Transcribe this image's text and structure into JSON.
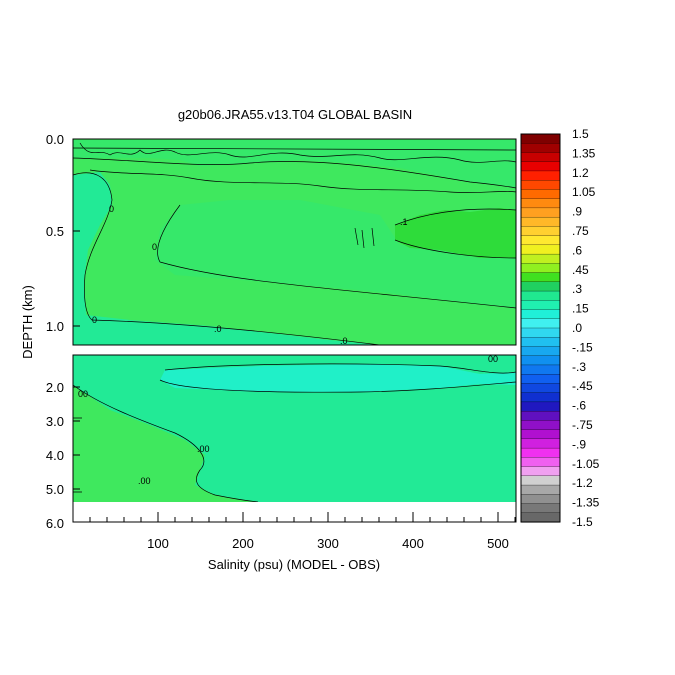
{
  "chart_data": {
    "type": "heatmap",
    "title": "g20b06.JRA55.v13.T04 GLOBAL BASIN",
    "xlabel": "Salinity (psu) (MODEL - OBS)",
    "ylabel": "DEPTH (km)",
    "xlim": [
      0,
      520
    ],
    "x_ticks": [
      "100",
      "200",
      "300",
      "400",
      "500"
    ],
    "upper_panel": {
      "ylim": [
        0.0,
        1.1
      ],
      "y_ticks": [
        "0.0",
        "0.5",
        "1.0"
      ]
    },
    "lower_panel": {
      "ylim": [
        1.1,
        6.0
      ],
      "y_ticks": [
        "2.0",
        "3.0",
        "4.0",
        "5.0",
        "6.0"
      ]
    },
    "colorbar": {
      "labels": [
        "1.5",
        "1.35",
        "1.2",
        "1.05",
        ".9",
        ".75",
        ".6",
        ".45",
        ".3",
        ".15",
        ".0",
        "-.15",
        "-.3",
        "-.45",
        "-.6",
        "-.75",
        "-.9",
        "-1.05",
        "-1.2",
        "-1.35",
        "-1.5"
      ],
      "colors": [
        "#7f0000",
        "#a00000",
        "#c80000",
        "#e80000",
        "#ff2000",
        "#ff4800",
        "#ff6a00",
        "#ff8a10",
        "#ffa020",
        "#ffb828",
        "#ffd030",
        "#ffe830",
        "#f0f020",
        "#c0f020",
        "#90f020",
        "#40e020",
        "#20d060",
        "#20e890",
        "#20f0b0",
        "#20f0d8",
        "#40f0f0",
        "#30d8f0",
        "#20c0f0",
        "#18a8f0",
        "#1090f0",
        "#1078f0",
        "#1060f0",
        "#1048e0",
        "#1030d0",
        "#2018c0",
        "#6010c0",
        "#9010c8",
        "#b010d0",
        "#d020e0",
        "#f030f0",
        "#f060f0",
        "#f0a0f0",
        "#d0d0d0",
        "#a8a8a8",
        "#909090",
        "#787878",
        "#686868"
      ]
    },
    "contour_labels": [
      "0",
      "0",
      ".0",
      ".0",
      "0",
      ".1",
      "00",
      "00",
      ".00",
      ".00"
    ],
    "colors": {
      "background_positive": "#3fe85e",
      "near_zero": "#22ea96",
      "slightly_positive": "#36e86a",
      "moderate_positive": "#2edc3a",
      "slightly_negative": "#20f0c8"
    }
  }
}
